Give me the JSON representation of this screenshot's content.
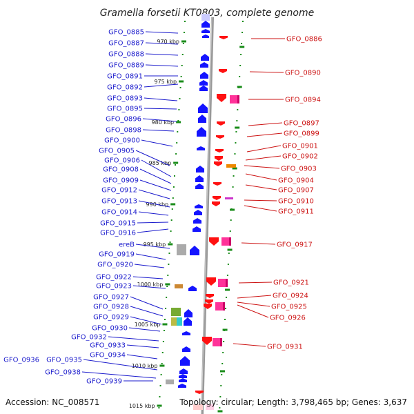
{
  "title": "Gramella forsetii KT0803, complete genome",
  "footer": {
    "accession": "Accession: NC_008571",
    "stats": "Topology: circular; Length: 3,798,465 bp; Genes: 3,637"
  },
  "colors": {
    "forward": "#1414ff",
    "reverse": "#ff1111",
    "reverse_pair": "#ff3399",
    "backbone": "#999999",
    "dots": "#1a8c1a",
    "left_labels": "#1a1acc",
    "right_labels": "#cc1111"
  },
  "ticks": [
    "970 kbp",
    "975 kbp",
    "980 kbp",
    "985 kbp",
    "990 kbp",
    "995 kbp",
    "1000 kbp",
    "1005 kbp",
    "1010 kbp",
    "1015 kbp"
  ],
  "left_genes": [
    "GFO_0885",
    "GFO_0887",
    "GFO_0888",
    "GFO_0889",
    "GFO_0891",
    "GFO_0892",
    "GFO_0893",
    "GFO_0895",
    "GFO_0896",
    "GFO_0898",
    "GFO_0900",
    "GFO_0905",
    "GFO_0906",
    "GFO_0908",
    "GFO_0909",
    "GFO_0912",
    "GFO_0913",
    "GFO_0914",
    "GFO_0915",
    "GFO_0916",
    "ereB",
    "GFO_0919",
    "GFO_0920",
    "GFO_0922",
    "GFO_0923",
    "GFO_0927",
    "GFO_0928",
    "GFO_0929",
    "GFO_0930",
    "GFO_0932",
    "GFO_0933",
    "GFO_0934",
    "GFO_0936",
    "GFO_0935",
    "GFO_0938",
    "GFO_0939"
  ],
  "right_genes": [
    "GFO_0886",
    "GFO_0890",
    "GFO_0894",
    "GFO_0897",
    "GFO_0899",
    "GFO_0901",
    "GFO_0902",
    "GFO_0903",
    "GFO_0904",
    "GFO_0907",
    "GFO_0910",
    "GFO_0911",
    "GFO_0917",
    "GFO_0921",
    "GFO_0924",
    "GFO_0925",
    "GFO_0926",
    "GFO_0931"
  ]
}
